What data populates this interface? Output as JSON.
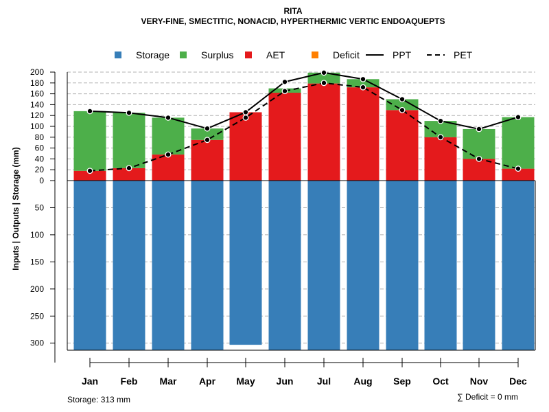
{
  "chart_data": {
    "type": "bar",
    "title": "RITA",
    "subtitle": "VERY-FINE, SMECTITIC, NONACID, HYPERTHERMIC VERTIC ENDOAQUEPTS",
    "ylabel": "Inputs | Outputs | Storage     (mm)",
    "categories": [
      "Jan",
      "Feb",
      "Mar",
      "Apr",
      "May",
      "Jun",
      "Jul",
      "Aug",
      "Sep",
      "Oct",
      "Nov",
      "Dec"
    ],
    "ylim_upper": [
      0,
      200
    ],
    "ylim_lower": [
      0,
      313
    ],
    "upper_ticks": [
      "0",
      "20",
      "40",
      "60",
      "80",
      "100",
      "120",
      "140",
      "160",
      "180",
      "200"
    ],
    "upper_tick_values": [
      0,
      20,
      40,
      60,
      80,
      100,
      120,
      140,
      160,
      180,
      200
    ],
    "lower_ticks": [
      "50",
      "100",
      "150",
      "200",
      "250",
      "300"
    ],
    "lower_tick_values": [
      50,
      100,
      150,
      200,
      250,
      300
    ],
    "legend": [
      {
        "label": "Storage",
        "kind": "box",
        "color": "#377EB8"
      },
      {
        "label": "Surplus",
        "kind": "box",
        "color": "#4DAF4A"
      },
      {
        "label": "AET",
        "kind": "box",
        "color": "#E41A1C"
      },
      {
        "label": "Deficit",
        "kind": "box",
        "color": "#FF7F00"
      },
      {
        "label": "PPT",
        "kind": "solid",
        "color": "#000000"
      },
      {
        "label": "PET",
        "kind": "dashed",
        "color": "#000000"
      }
    ],
    "series": [
      {
        "name": "Storage",
        "values": [
          313,
          313,
          313,
          313,
          303,
          313,
          313,
          313,
          313,
          313,
          313,
          313
        ]
      },
      {
        "name": "AET",
        "values": [
          18,
          23,
          48,
          75,
          126,
          162,
          179,
          172,
          130,
          80,
          40,
          22
        ]
      },
      {
        "name": "Surplus",
        "values": [
          110,
          102,
          68,
          21,
          0,
          8,
          20,
          15,
          20,
          30,
          55,
          95
        ]
      },
      {
        "name": "Deficit",
        "values": [
          0,
          0,
          0,
          0,
          0,
          0,
          0,
          0,
          0,
          0,
          0,
          0
        ]
      },
      {
        "name": "PPT",
        "values": [
          128,
          125,
          116,
          96,
          126,
          182,
          199,
          187,
          150,
          110,
          95,
          117
        ]
      },
      {
        "name": "PET",
        "values": [
          18,
          23,
          48,
          75,
          116,
          165,
          180,
          172,
          130,
          80,
          40,
          22
        ]
      }
    ],
    "footer_left": "Storage: 313 mm",
    "footer_right": "∑ Deficit = 0 mm"
  }
}
